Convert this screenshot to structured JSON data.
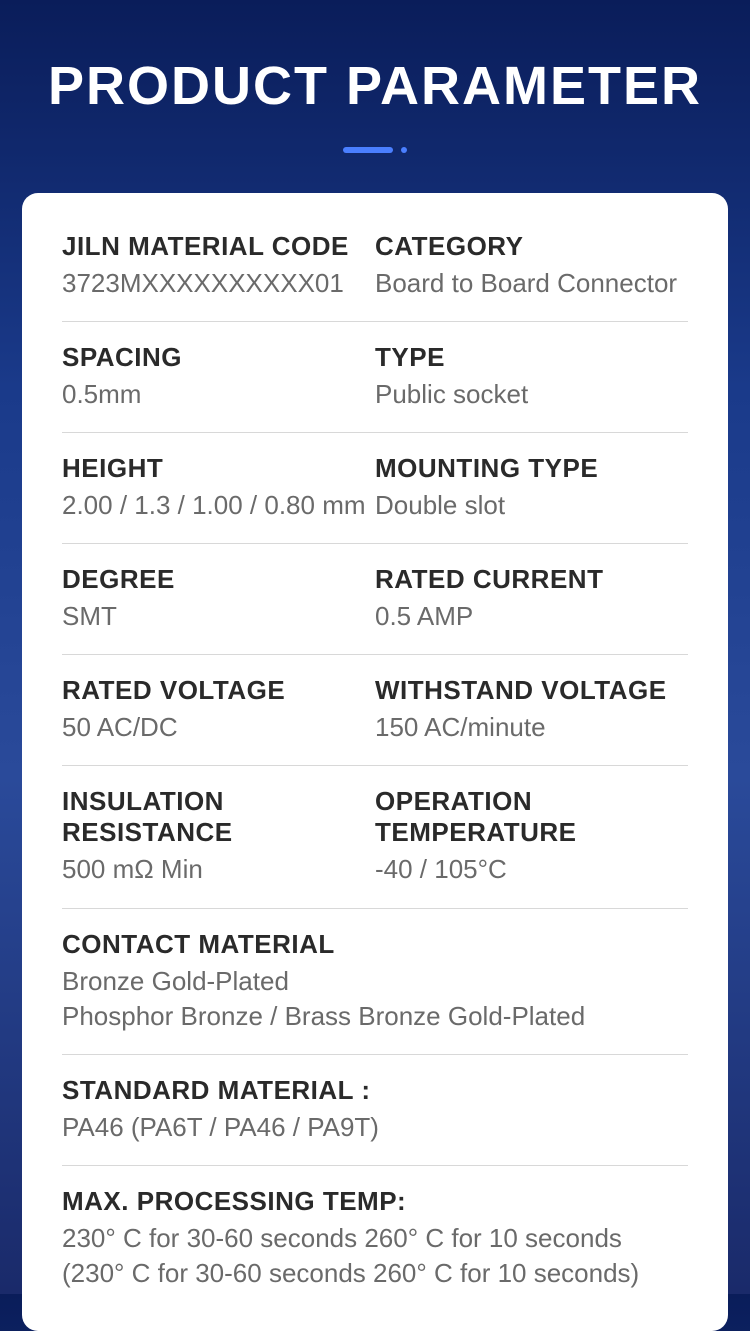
{
  "page": {
    "title": "PRODUCT PARAMETER",
    "bgGradient": [
      "#0a1d5a",
      "#1a3a8a",
      "#2a4a9a",
      "#1a2a6a"
    ],
    "accentColor": "#4a7fff",
    "titleColor": "#ffffff",
    "titleFontSize": 54,
    "cardBg": "#ffffff",
    "labelColor": "#2a2a2a",
    "valueColor": "#6a6a6a",
    "fontSize": 26,
    "dividerColor": "#d8d8d8"
  },
  "params": {
    "materialCode": {
      "label": "JILN MATERIAL CODE",
      "value": "3723MXXXXXXXXXX01"
    },
    "category": {
      "label": "CATEGORY",
      "value": "Board to Board Connector"
    },
    "spacing": {
      "label": "SPACING",
      "value": "0.5mm"
    },
    "type": {
      "label": "TYPE",
      "value": "Public socket"
    },
    "height": {
      "label": "HEIGHT",
      "value": "2.00 / 1.3 / 1.00 / 0.80 mm"
    },
    "mountingType": {
      "label": "MOUNTING TYPE",
      "value": "Double slot"
    },
    "degree": {
      "label": "DEGREE",
      "value": "SMT"
    },
    "ratedCurrent": {
      "label": "RATED CURRENT",
      "value": "0.5 AMP"
    },
    "ratedVoltage": {
      "label": "RATED VOLTAGE",
      "value": "50 AC/DC"
    },
    "withstandVoltage": {
      "label": "WITHSTAND VOLTAGE",
      "value": "150 AC/minute"
    },
    "insulationResistance": {
      "label": "INSULATION RESISTANCE",
      "value": "500 mΩ Min"
    },
    "operationTemperature": {
      "label": "OPERATION TEMPERATURE",
      "value": "-40 / 105°C"
    },
    "contactMaterial": {
      "label": "CONTACT MATERIAL",
      "value": "Bronze Gold-Plated\nPhosphor Bronze / Brass Bronze Gold-Plated"
    },
    "standardMaterial": {
      "label": "STANDARD MATERIAL :",
      "value": "PA46 (PA6T / PA46 / PA9T)"
    },
    "maxProcessingTemp": {
      "label": "MAX. PROCESSING TEMP:",
      "value": "230° C for 30-60 seconds     260° C for 10 seconds\n(230° C for 30-60 seconds     260° C for 10 seconds)"
    }
  }
}
